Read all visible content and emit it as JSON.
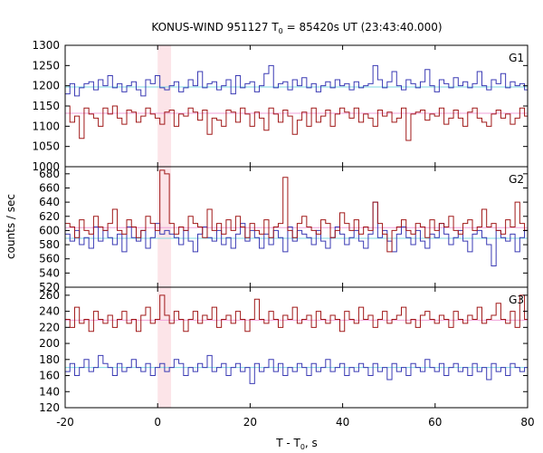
{
  "chart_data": {
    "type": "line",
    "title": "KONUS-WIND 951127 T",
    "title_sub": "0",
    "title_rest": " = 85420s UT (23:43:40.000)",
    "xlabel": "T - T",
    "xlabel_sub": "0",
    "xlabel_rest": ", s",
    "ylabel": "counts / sec",
    "xlim": [
      -20,
      80
    ],
    "x_ticks": [
      -20,
      0,
      20,
      40,
      60,
      80
    ],
    "grid": false,
    "highlight": {
      "x0": 0,
      "x1": 2.9,
      "color": "#fce4e8"
    },
    "bin_width": 1.024,
    "colors": {
      "blue": "#3a3ab4",
      "red": "#a01818",
      "cyan_bg": "#7fd8e0",
      "pink_bg": "#f0a0d8"
    },
    "panels": [
      {
        "label": "G1",
        "ylim": [
          1000,
          1300
        ],
        "y_ticks": [
          1000,
          1050,
          1100,
          1150,
          1200,
          1250,
          1300
        ],
        "series": [
          {
            "color": "blue",
            "background": 1197,
            "values": [
              1180,
              1205,
              1175,
              1195,
              1205,
              1210,
              1190,
              1215,
              1200,
              1225,
              1195,
              1205,
              1185,
              1200,
              1210,
              1190,
              1175,
              1215,
              1205,
              1225,
              1195,
              1190,
              1200,
              1210,
              1185,
              1195,
              1215,
              1200,
              1235,
              1195,
              1205,
              1210,
              1190,
              1200,
              1215,
              1180,
              1225,
              1195,
              1205,
              1210,
              1185,
              1200,
              1230,
              1250,
              1195,
              1205,
              1210,
              1190,
              1215,
              1200,
              1220,
              1195,
              1205,
              1185,
              1200,
              1210,
              1195,
              1215,
              1200,
              1205,
              1190,
              1210,
              1195,
              1200,
              1205,
              1250,
              1215,
              1195,
              1210,
              1235,
              1200,
              1190,
              1215,
              1205,
              1195,
              1210,
              1240,
              1200,
              1185,
              1215,
              1205,
              1195,
              1220,
              1200,
              1210,
              1195,
              1205,
              1235,
              1200,
              1190,
              1215,
              1205,
              1230,
              1195,
              1210,
              1200,
              1205,
              1190,
              1215,
              1200
            ]
          },
          {
            "color": "red",
            "background": 1132,
            "values": [
              1150,
              1110,
              1125,
              1070,
              1145,
              1130,
              1120,
              1100,
              1145,
              1130,
              1150,
              1120,
              1105,
              1140,
              1135,
              1110,
              1125,
              1145,
              1130,
              1120,
              1105,
              1135,
              1140,
              1100,
              1130,
              1125,
              1145,
              1135,
              1115,
              1140,
              1080,
              1120,
              1115,
              1100,
              1140,
              1135,
              1110,
              1145,
              1130,
              1100,
              1135,
              1120,
              1090,
              1145,
              1130,
              1110,
              1140,
              1125,
              1080,
              1115,
              1135,
              1100,
              1145,
              1110,
              1125,
              1140,
              1100,
              1130,
              1145,
              1135,
              1120,
              1145,
              1110,
              1130,
              1120,
              1100,
              1140,
              1125,
              1135,
              1110,
              1120,
              1145,
              1065,
              1130,
              1135,
              1140,
              1115,
              1130,
              1125,
              1145,
              1105,
              1120,
              1140,
              1120,
              1100,
              1135,
              1145,
              1120,
              1110,
              1100,
              1130,
              1140,
              1120,
              1130,
              1105,
              1120,
              1145,
              1125,
              1110,
              1080
            ]
          }
        ]
      },
      {
        "label": "G2",
        "ylim": [
          520,
          690
        ],
        "y_ticks": [
          520,
          540,
          560,
          580,
          600,
          620,
          640,
          660,
          680
        ],
        "series": [
          {
            "color": "blue",
            "background": 589,
            "values": [
              595,
              585,
              600,
              580,
              590,
              575,
              605,
              585,
              600,
              590,
              580,
              595,
              570,
              605,
              590,
              585,
              600,
              575,
              590,
              610,
              595,
              600,
              595,
              590,
              580,
              600,
              585,
              570,
              595,
              605,
              590,
              585,
              600,
              580,
              590,
              575,
              595,
              610,
              585,
              600,
              590,
              575,
              595,
              580,
              600,
              590,
              570,
              605,
              585,
              600,
              595,
              590,
              580,
              600,
              585,
              575,
              590,
              605,
              595,
              580,
              590,
              600,
              585,
              575,
              595,
              640,
              590,
              600,
              585,
              570,
              595,
              605,
              590,
              580,
              600,
              585,
              575,
              595,
              590,
              610,
              595,
              580,
              590,
              600,
              585,
              570,
              595,
              600,
              590,
              580,
              550,
              600,
              590,
              585,
              595,
              570,
              590,
              600,
              585,
              590
            ]
          },
          {
            "color": "red",
            "background": 604,
            "values": [
              610,
              605,
              590,
              615,
              600,
              595,
              620,
              605,
              600,
              610,
              630,
              600,
              595,
              615,
              605,
              590,
              600,
              620,
              610,
              600,
              685,
              680,
              610,
              595,
              605,
              600,
              620,
              610,
              605,
              590,
              630,
              600,
              610,
              595,
              615,
              600,
              620,
              605,
              590,
              610,
              600,
              595,
              615,
              590,
              605,
              610,
              675,
              600,
              590,
              610,
              620,
              605,
              600,
              595,
              615,
              610,
              590,
              600,
              625,
              610,
              600,
              615,
              595,
              605,
              600,
              640,
              610,
              595,
              570,
              600,
              605,
              615,
              600,
              595,
              610,
              605,
              590,
              615,
              600,
              610,
              605,
              620,
              600,
              595,
              610,
              615,
              600,
              605,
              630,
              605,
              610,
              600,
              595,
              615,
              605,
              640,
              610,
              600,
              620,
              605
            ]
          }
        ]
      },
      {
        "label": "G3",
        "ylim": [
          120,
          270
        ],
        "y_ticks": [
          120,
          140,
          160,
          180,
          200,
          220,
          240,
          260
        ],
        "series": [
          {
            "color": "red",
            "background": 229,
            "values": [
              230,
              220,
              245,
              225,
              230,
              215,
              240,
              230,
              225,
              235,
              220,
              230,
              240,
              225,
              230,
              215,
              235,
              245,
              225,
              230,
              260,
              235,
              225,
              240,
              230,
              215,
              230,
              240,
              225,
              235,
              230,
              245,
              220,
              230,
              235,
              225,
              240,
              230,
              215,
              230,
              255,
              230,
              225,
              240,
              230,
              220,
              235,
              230,
              245,
              225,
              230,
              235,
              220,
              240,
              230,
              225,
              235,
              230,
              215,
              240,
              230,
              225,
              245,
              230,
              235,
              220,
              230,
              240,
              225,
              230,
              235,
              245,
              225,
              230,
              220,
              235,
              240,
              230,
              225,
              235,
              230,
              220,
              240,
              230,
              225,
              235,
              230,
              245,
              225,
              230,
              235,
              250,
              230,
              225,
              240,
              220,
              260,
              230,
              235,
              255
            ]
          },
          {
            "color": "blue",
            "background": 170,
            "values": [
              165,
              175,
              160,
              170,
              180,
              165,
              170,
              185,
              175,
              170,
              160,
              175,
              165,
              170,
              180,
              170,
              165,
              175,
              160,
              170,
              175,
              165,
              170,
              180,
              175,
              160,
              170,
              165,
              175,
              170,
              185,
              165,
              170,
              175,
              160,
              170,
              175,
              165,
              170,
              150,
              175,
              165,
              170,
              180,
              165,
              175,
              160,
              170,
              165,
              175,
              170,
              160,
              175,
              165,
              170,
              180,
              165,
              170,
              175,
              160,
              170,
              165,
              175,
              170,
              160,
              175,
              165,
              170,
              155,
              175,
              165,
              170,
              160,
              175,
              170,
              165,
              180,
              170,
              165,
              175,
              160,
              170,
              175,
              165,
              170,
              160,
              175,
              165,
              170,
              155,
              175,
              165,
              170,
              160,
              175,
              170,
              165,
              170,
              160,
              170
            ]
          }
        ]
      }
    ]
  }
}
